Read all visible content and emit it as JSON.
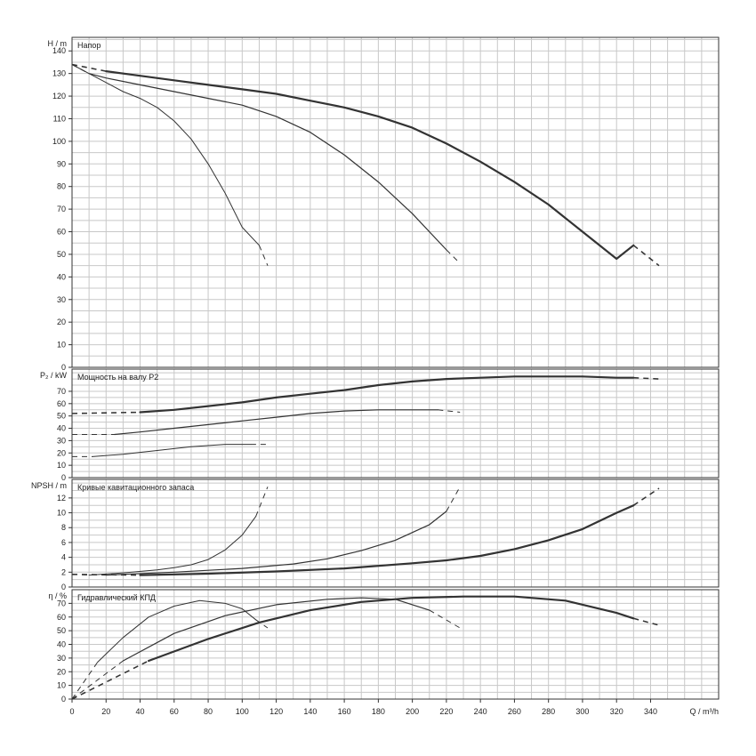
{
  "chart_data": {
    "x_axis": {
      "label": "Q / m³/h",
      "ticks": [
        0,
        20,
        40,
        60,
        80,
        100,
        120,
        140,
        160,
        180,
        200,
        220,
        240,
        260,
        280,
        300,
        320,
        340
      ],
      "range": [
        0,
        380
      ],
      "grid_step": 10
    },
    "panels": [
      {
        "id": "head",
        "type": "line",
        "title": "Напор",
        "ylabel": "H / m",
        "ylim": [
          0,
          146
        ],
        "yticks": [
          0,
          10,
          20,
          30,
          40,
          50,
          60,
          70,
          80,
          90,
          100,
          110,
          120,
          130,
          140
        ],
        "grid_step": 5,
        "series": [
          {
            "weight": "thin",
            "solid": [
              [
                0,
                134
              ],
              [
                10,
                130
              ],
              [
                20,
                126
              ],
              [
                30,
                122
              ],
              [
                40,
                119
              ],
              [
                50,
                115
              ],
              [
                60,
                109
              ],
              [
                70,
                101
              ],
              [
                80,
                90
              ],
              [
                90,
                77
              ],
              [
                100,
                62
              ],
              [
                110,
                54
              ]
            ],
            "dashed": [
              [
                0,
                134
              ],
              [
                10,
                130
              ]
            ],
            "dashed_end": [
              [
                110,
                54
              ],
              [
                115,
                45
              ]
            ]
          },
          {
            "weight": "medium",
            "solid": [
              [
                10,
                130
              ],
              [
                20,
                128
              ],
              [
                40,
                125
              ],
              [
                60,
                122
              ],
              [
                80,
                119
              ],
              [
                100,
                116
              ],
              [
                120,
                111
              ],
              [
                140,
                104
              ],
              [
                160,
                94
              ],
              [
                180,
                82
              ],
              [
                200,
                68
              ],
              [
                220,
                52
              ]
            ],
            "dashed": [
              [
                0,
                134
              ],
              [
                10,
                130
              ]
            ],
            "dashed_end": [
              [
                220,
                52
              ],
              [
                228,
                46
              ]
            ]
          },
          {
            "weight": "thick",
            "solid": [
              [
                20,
                131
              ],
              [
                40,
                129
              ],
              [
                60,
                127
              ],
              [
                80,
                125
              ],
              [
                100,
                123
              ],
              [
                120,
                121
              ],
              [
                140,
                118
              ],
              [
                160,
                115
              ],
              [
                180,
                111
              ],
              [
                200,
                106
              ],
              [
                220,
                99
              ],
              [
                240,
                91
              ],
              [
                260,
                82
              ],
              [
                280,
                72
              ],
              [
                300,
                60
              ],
              [
                320,
                48
              ],
              [
                330,
                54
              ]
            ],
            "dashed": [
              [
                0,
                134
              ],
              [
                20,
                131
              ]
            ],
            "dashed_end": [
              [
                330,
                54
              ],
              [
                345,
                45
              ]
            ]
          }
        ]
      },
      {
        "id": "power",
        "type": "line",
        "title": "Мощность на валу P2",
        "ylabel": "P₂ / kW",
        "ylim": [
          0,
          88
        ],
        "yticks": [
          0,
          10,
          20,
          30,
          40,
          50,
          60,
          70
        ],
        "grid_step": 5,
        "series": [
          {
            "weight": "thin",
            "solid": [
              [
                12,
                17
              ],
              [
                30,
                19
              ],
              [
                50,
                22
              ],
              [
                70,
                25
              ],
              [
                90,
                27
              ],
              [
                105,
                27
              ]
            ],
            "dashed": [
              [
                0,
                17
              ],
              [
                12,
                17
              ]
            ],
            "dashed_end": [
              [
                105,
                27
              ],
              [
                115,
                27
              ]
            ]
          },
          {
            "weight": "medium",
            "solid": [
              [
                25,
                35
              ],
              [
                40,
                37
              ],
              [
                60,
                40
              ],
              [
                80,
                43
              ],
              [
                100,
                46
              ],
              [
                120,
                49
              ],
              [
                140,
                52
              ],
              [
                160,
                54
              ],
              [
                180,
                55
              ],
              [
                200,
                55
              ],
              [
                215,
                55
              ]
            ],
            "dashed": [
              [
                0,
                35
              ],
              [
                25,
                35
              ]
            ],
            "dashed_end": [
              [
                215,
                55
              ],
              [
                228,
                53
              ]
            ]
          },
          {
            "weight": "thick",
            "solid": [
              [
                40,
                53
              ],
              [
                60,
                55
              ],
              [
                80,
                58
              ],
              [
                100,
                61
              ],
              [
                120,
                65
              ],
              [
                140,
                68
              ],
              [
                160,
                71
              ],
              [
                180,
                75
              ],
              [
                200,
                78
              ],
              [
                220,
                80
              ],
              [
                240,
                81
              ],
              [
                260,
                82
              ],
              [
                280,
                82
              ],
              [
                300,
                82
              ],
              [
                320,
                81
              ],
              [
                330,
                81
              ]
            ],
            "dashed": [
              [
                0,
                52
              ],
              [
                40,
                53
              ]
            ],
            "dashed_end": [
              [
                330,
                81
              ],
              [
                345,
                80
              ]
            ]
          }
        ]
      },
      {
        "id": "npsh",
        "type": "line",
        "title": "Кривые кавитационного запаса",
        "ylabel": "NPSH / m",
        "ylim": [
          0,
          14.5
        ],
        "yticks": [
          0,
          2,
          4,
          6,
          8,
          10,
          12
        ],
        "grid_step": 1,
        "series": [
          {
            "weight": "thin",
            "solid": [
              [
                10,
                1.6
              ],
              [
                30,
                1.9
              ],
              [
                50,
                2.3
              ],
              [
                60,
                2.6
              ],
              [
                70,
                3.0
              ],
              [
                80,
                3.7
              ],
              [
                90,
                5.0
              ],
              [
                100,
                7.0
              ],
              [
                108,
                9.5
              ]
            ],
            "dashed": [
              [
                0,
                1.7
              ],
              [
                10,
                1.6
              ]
            ],
            "dashed_end": [
              [
                108,
                9.5
              ],
              [
                115,
                13.5
              ]
            ]
          },
          {
            "weight": "medium",
            "solid": [
              [
                20,
                1.6
              ],
              [
                60,
                2.0
              ],
              [
                100,
                2.5
              ],
              [
                130,
                3.1
              ],
              [
                150,
                3.8
              ],
              [
                170,
                4.9
              ],
              [
                190,
                6.3
              ],
              [
                210,
                8.4
              ],
              [
                220,
                10.2
              ]
            ],
            "dashed": [
              [
                0,
                1.7
              ],
              [
                20,
                1.6
              ]
            ],
            "dashed_end": [
              [
                220,
                10.2
              ],
              [
                228,
                13.5
              ]
            ]
          },
          {
            "weight": "thick",
            "solid": [
              [
                40,
                1.6
              ],
              [
                80,
                1.8
              ],
              [
                120,
                2.1
              ],
              [
                160,
                2.5
              ],
              [
                200,
                3.2
              ],
              [
                220,
                3.6
              ],
              [
                240,
                4.2
              ],
              [
                260,
                5.1
              ],
              [
                280,
                6.3
              ],
              [
                300,
                7.8
              ],
              [
                320,
                10.0
              ],
              [
                330,
                11.0
              ]
            ],
            "dashed": [
              [
                0,
                1.7
              ],
              [
                40,
                1.6
              ]
            ],
            "dashed_end": [
              [
                330,
                11.0
              ],
              [
                345,
                13.3
              ]
            ]
          }
        ]
      },
      {
        "id": "eff",
        "type": "line",
        "title": "Гидравлический КПД",
        "ylabel": "η / %",
        "ylim": [
          0,
          80
        ],
        "yticks": [
          0,
          10,
          20,
          30,
          40,
          50,
          60,
          70
        ],
        "grid_step": 5,
        "series": [
          {
            "weight": "thin",
            "solid": [
              [
                15,
                27
              ],
              [
                30,
                45
              ],
              [
                45,
                60
              ],
              [
                60,
                68
              ],
              [
                75,
                72
              ],
              [
                90,
                70
              ],
              [
                100,
                66
              ],
              [
                108,
                58
              ]
            ],
            "dashed": [
              [
                0,
                0
              ],
              [
                15,
                27
              ]
            ],
            "dashed_end": [
              [
                108,
                58
              ],
              [
                115,
                52
              ]
            ]
          },
          {
            "weight": "medium",
            "solid": [
              [
                30,
                28
              ],
              [
                60,
                48
              ],
              [
                90,
                61
              ],
              [
                120,
                69
              ],
              [
                150,
                73
              ],
              [
                170,
                74
              ],
              [
                190,
                73
              ],
              [
                210,
                65
              ]
            ],
            "dashed": [
              [
                0,
                0
              ],
              [
                30,
                28
              ]
            ],
            "dashed_end": [
              [
                210,
                65
              ],
              [
                228,
                52
              ]
            ]
          },
          {
            "weight": "thick",
            "solid": [
              [
                45,
                28
              ],
              [
                80,
                44
              ],
              [
                110,
                56
              ],
              [
                140,
                65
              ],
              [
                170,
                71
              ],
              [
                200,
                74
              ],
              [
                230,
                75
              ],
              [
                260,
                75
              ],
              [
                290,
                72
              ],
              [
                320,
                63
              ],
              [
                330,
                59
              ]
            ],
            "dashed": [
              [
                0,
                0
              ],
              [
                45,
                28
              ]
            ],
            "dashed_end": [
              [
                330,
                59
              ],
              [
                345,
                54
              ]
            ]
          }
        ]
      }
    ]
  }
}
